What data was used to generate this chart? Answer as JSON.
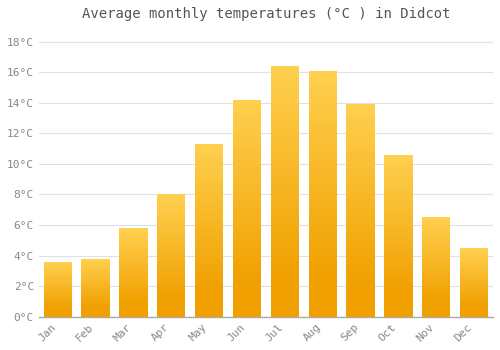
{
  "title": "Average monthly temperatures (°C ) in Didcot",
  "months": [
    "Jan",
    "Feb",
    "Mar",
    "Apr",
    "May",
    "Jun",
    "Jul",
    "Aug",
    "Sep",
    "Oct",
    "Nov",
    "Dec"
  ],
  "values": [
    3.6,
    3.8,
    5.8,
    8.0,
    11.3,
    14.2,
    16.4,
    16.1,
    13.9,
    10.6,
    6.5,
    4.5
  ],
  "bar_color_light": "#FFD050",
  "bar_color_dark": "#F0A000",
  "background_color": "#FFFFFF",
  "plot_bg_color": "#FFFFFF",
  "grid_color": "#E0E0E8",
  "tick_color": "#888888",
  "title_color": "#555555",
  "ylim": [
    0,
    19
  ],
  "yticks": [
    0,
    2,
    4,
    6,
    8,
    10,
    12,
    14,
    16,
    18
  ],
  "ytick_labels": [
    "0°C",
    "2°C",
    "4°C",
    "6°C",
    "8°C",
    "10°C",
    "12°C",
    "14°C",
    "16°C",
    "18°C"
  ],
  "title_fontsize": 10,
  "tick_fontsize": 8,
  "bar_width": 0.75
}
